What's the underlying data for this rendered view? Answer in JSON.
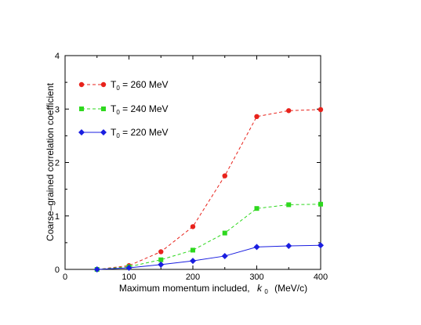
{
  "chart_data": {
    "type": "line",
    "xlabel": "Maximum momentum included,",
    "xlabel_var": "k",
    "xlabel_sub": "0",
    "xlabel_unit": "(MeV/c)",
    "ylabel": "Coarse–grained correlation coefficient",
    "xlim": [
      0,
      400
    ],
    "ylim": [
      0,
      4
    ],
    "xticks": [
      0,
      100,
      200,
      300,
      400
    ],
    "yticks": [
      0,
      1,
      2,
      3,
      4
    ],
    "grid": false,
    "legend_position": "top-left",
    "x": [
      50,
      100,
      150,
      200,
      250,
      300,
      350,
      400
    ],
    "series": [
      {
        "name": "T0 = 260 MeV",
        "legend_prefix": "T",
        "legend_sub": "0",
        "legend_rest": " = 260 MeV",
        "color": "#e8221b",
        "marker": "circle",
        "dash": "dashed",
        "values": [
          0.0,
          0.07,
          0.33,
          0.8,
          1.75,
          2.86,
          2.97,
          2.99
        ]
      },
      {
        "name": "T0 = 240 MeV",
        "legend_prefix": "T",
        "legend_sub": "0",
        "legend_rest": " = 240 MeV",
        "color": "#2ed81e",
        "marker": "square",
        "dash": "dashed",
        "values": [
          0.0,
          0.05,
          0.18,
          0.36,
          0.68,
          1.14,
          1.21,
          1.22
        ]
      },
      {
        "name": "T0 = 220 MeV",
        "legend_prefix": "T",
        "legend_sub": "0",
        "legend_rest": " = 220 MeV",
        "color": "#1a1ee0",
        "marker": "diamond",
        "dash": "solid",
        "values": [
          0.0,
          0.03,
          0.09,
          0.16,
          0.25,
          0.42,
          0.44,
          0.45
        ]
      }
    ]
  }
}
